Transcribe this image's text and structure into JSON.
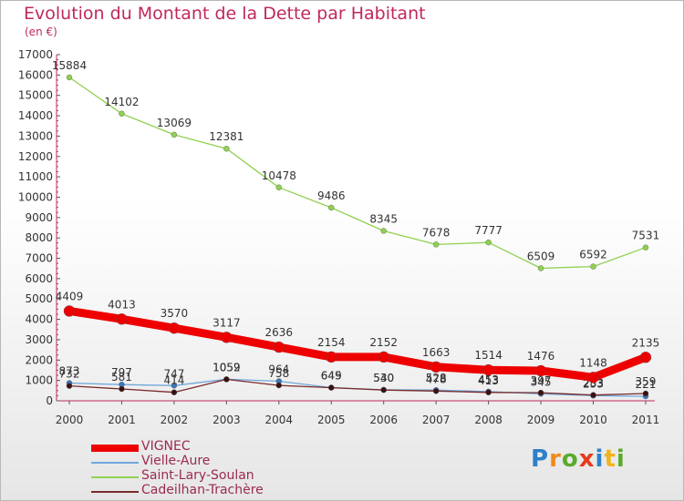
{
  "title": "Evolution du Montant de la Dette par Habitant",
  "subtitle": "(en €)",
  "logo": {
    "letters": [
      "P",
      "r",
      "o",
      "x",
      "i",
      "t",
      "i"
    ],
    "colors": [
      "#2f7fc9",
      "#f08a1c",
      "#5aaa2c",
      "#e8391d",
      "#2f7fc9",
      "#f0b41c",
      "#5aaa2c"
    ]
  },
  "chart_data": {
    "type": "line",
    "title": "Evolution du Montant de la Dette par Habitant",
    "subtitle": "(en €)",
    "x": [
      "2000",
      "2001",
      "2002",
      "2003",
      "2004",
      "2005",
      "2006",
      "2007",
      "2008",
      "2009",
      "2010",
      "2011"
    ],
    "ylim": [
      0,
      17000
    ],
    "yticks": [
      0,
      1000,
      2000,
      3000,
      4000,
      5000,
      6000,
      7000,
      8000,
      9000,
      10000,
      11000,
      12000,
      13000,
      14000,
      15000,
      16000,
      17000
    ],
    "grid": false,
    "legend_position": "bottom-left",
    "series": [
      {
        "name": "Saint-Lary-Soulan",
        "color": "#8fd14f",
        "values": [
          15884,
          14102,
          13069,
          12381,
          10478,
          9486,
          8345,
          7678,
          7777,
          6509,
          6592,
          7531
        ]
      },
      {
        "name": "Vielle-Aure",
        "color": "#6fa8dc",
        "values": [
          873,
          797,
          747,
          1059,
          964,
          649,
          540,
          528,
          453,
          345,
          253,
          221
        ]
      },
      {
        "name": "Cadeilhan-Trachère",
        "color": "#7a2a2a",
        "values": [
          732,
          581,
          414,
          1052,
          758,
          645,
          530,
          478,
          413,
          397,
          283,
          359
        ]
      },
      {
        "name": "VIGNEC",
        "color": "#ee0000",
        "values": [
          4409,
          4013,
          3570,
          3117,
          2636,
          2154,
          2152,
          1663,
          1514,
          1476,
          1148,
          2135
        ]
      }
    ],
    "legend_order": [
      "VIGNEC",
      "Vielle-Aure",
      "Saint-Lary-Soulan",
      "Cadeilhan-Trachère"
    ]
  }
}
